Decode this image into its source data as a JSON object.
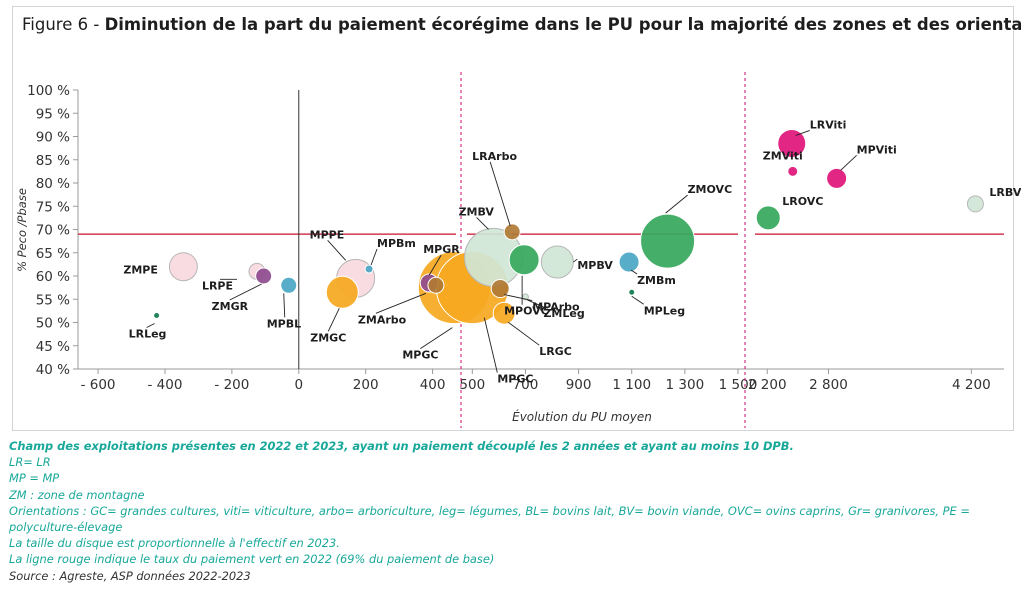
{
  "title": {
    "figure": "Figure 6 - ",
    "text": "Diminution de la part du paiement écorégime dans le PU pour la majorité des zones et des orientations"
  },
  "colors": {
    "GC": "#f6a821",
    "Viti": "#e0147a",
    "Arbo": "#b07a34",
    "Leg": "#0f7a4d",
    "BL": "#4aa6c4",
    "BV": "#cfe6d5",
    "OVC": "#35a85c",
    "Gr": "#8e4a8e",
    "PE": "#f9d8df",
    "refline": "#c8102e",
    "divider": "#d63384"
  },
  "chart_data": {
    "type": "scatter",
    "xlabel": "Évolution du PU moyen",
    "ylabel": "% Peco /Pbase",
    "yticks": [
      "40 %",
      "45 %",
      "50 %",
      "55 %",
      "60 %",
      "65 %",
      "70 %",
      "75 %",
      "80 %",
      "85 %",
      "90 %",
      "95 %",
      "100 %"
    ],
    "ylim": [
      40,
      100
    ],
    "reference_line": 69,
    "panels": [
      {
        "xlim": [
          -660,
          470
        ],
        "ticks": [
          -600,
          -400,
          -200,
          0,
          200,
          400
        ],
        "tick_labels": [
          "- 600",
          "- 400",
          "- 200",
          "0",
          "200",
          "400"
        ],
        "zero_line": true
      },
      {
        "xlim": [
          480,
          1500
        ],
        "ticks": [
          500,
          700,
          900,
          1100,
          1300,
          1500
        ],
        "tick_labels": [
          "500",
          "700",
          "900",
          "1 100",
          "1 300",
          "1 500"
        ]
      },
      {
        "xlim": [
          2080,
          4520
        ],
        "ticks": [
          2200,
          2800,
          4200
        ],
        "tick_labels": [
          "2 200",
          "2 800",
          "4 200"
        ]
      }
    ],
    "points": [
      {
        "label": "ZMPE",
        "x": -345,
        "y": 62,
        "size": 14,
        "cat": "PE",
        "panel": 0
      },
      {
        "label": "LRPE",
        "x": -125,
        "y": 61,
        "size": 8,
        "cat": "PE",
        "panel": 0
      },
      {
        "label": "ZMGR",
        "x": -105,
        "y": 60,
        "size": 8,
        "cat": "Gr",
        "panel": 0
      },
      {
        "label": "MPBL",
        "x": -30,
        "y": 58,
        "size": 8,
        "cat": "BL",
        "panel": 0
      },
      {
        "label": "LRLeg",
        "x": -425,
        "y": 51.5,
        "size": 3,
        "cat": "Leg",
        "panel": 0
      },
      {
        "label": "MPGC",
        "x": 465,
        "y": 57.5,
        "size": 36,
        "cat": "GC",
        "panel": 0
      },
      {
        "label": "ZMGC",
        "x": 130,
        "y": 56.5,
        "size": 16,
        "cat": "GC",
        "panel": 0
      },
      {
        "label": "MPPE",
        "x": 170,
        "y": 59.5,
        "size": 19,
        "cat": "PE",
        "panel": 0
      },
      {
        "label": "MPBm",
        "x": 210,
        "y": 61.5,
        "size": 4,
        "cat": "BL",
        "panel": 0
      },
      {
        "label": "MPGR",
        "x": 390,
        "y": 58.5,
        "size": 9,
        "cat": "Gr",
        "panel": 0
      },
      {
        "label": "ZMArbo",
        "x": 410,
        "y": 58,
        "size": 8,
        "cat": "Arbo",
        "panel": 0
      },
      {
        "label": "ZMBV",
        "x": 580,
        "y": 64,
        "size": 29,
        "cat": "BV",
        "panel": 1
      },
      {
        "label": "LRArbo",
        "x": 650,
        "y": 69.5,
        "size": 8,
        "cat": "Arbo",
        "panel": 1
      },
      {
        "label": "MPOVC",
        "x": 695,
        "y": 63.5,
        "size": 15,
        "cat": "OVC",
        "panel": 1
      },
      {
        "label": "MPBV",
        "x": 820,
        "y": 63,
        "size": 16,
        "cat": "BV",
        "panel": 1
      },
      {
        "label": "ZMBm",
        "x": 1090,
        "y": 63,
        "size": 10,
        "cat": "BL",
        "panel": 1
      },
      {
        "label": "ZMOVC",
        "x": 1235,
        "y": 67.5,
        "size": 27,
        "cat": "OVC",
        "panel": 1
      },
      {
        "label": "MPGC",
        "x": 500,
        "y": 57.5,
        "size": 36,
        "cat": "GC",
        "panel": 1
      },
      {
        "label": "LRGC",
        "x": 620,
        "y": 52,
        "size": 11,
        "cat": "GC",
        "panel": 1
      },
      {
        "label": "MPArbo",
        "x": 605,
        "y": 57.3,
        "size": 9,
        "cat": "Arbo",
        "panel": 1
      },
      {
        "label": "ZMLeg",
        "x": 700,
        "y": 55.5,
        "size": 3,
        "cat": "BV",
        "panel": 1
      },
      {
        "label": "MPLeg",
        "x": 1100,
        "y": 56.5,
        "size": 3,
        "cat": "Leg",
        "panel": 1
      },
      {
        "label": "LRViti",
        "x": 2440,
        "y": 88.5,
        "size": 14,
        "cat": "Viti",
        "panel": 2
      },
      {
        "label": "ZMViti",
        "x": 2450,
        "y": 82.5,
        "size": 5,
        "cat": "Viti",
        "panel": 2
      },
      {
        "label": "MPViti",
        "x": 2880,
        "y": 81,
        "size": 10,
        "cat": "Viti",
        "panel": 2
      },
      {
        "label": "LROVC",
        "x": 2210,
        "y": 72.5,
        "size": 12,
        "cat": "OVC",
        "panel": 2
      },
      {
        "label": "LRBV",
        "x": 4240,
        "y": 75.5,
        "size": 8,
        "cat": "BV",
        "panel": 2
      }
    ]
  },
  "notes": {
    "header": "Champ des exploitations présentes en 2022 et 2023, ayant un paiement découplé les 2 années et ayant au moins 10 DPB.",
    "lr": "LR= LR",
    "mp": "MP = MP",
    "zm": "ZM : zone de montagne",
    "orientations": "Orientations : GC= grandes cultures, viti= viticulture, arbo= arboriculture, leg= légumes, BL= bovins lait, BV= bovin viande, OVC= ovins caprins, Gr= granivores, PE = polyculture-élevage",
    "size": "La taille du disque est proportionnelle à l'effectif en 2023.",
    "redline": "La ligne rouge indique le taux du paiement vert en 2022 (69% du paiement de base)",
    "source": "Source : Agreste, ASP données 2022-2023"
  }
}
